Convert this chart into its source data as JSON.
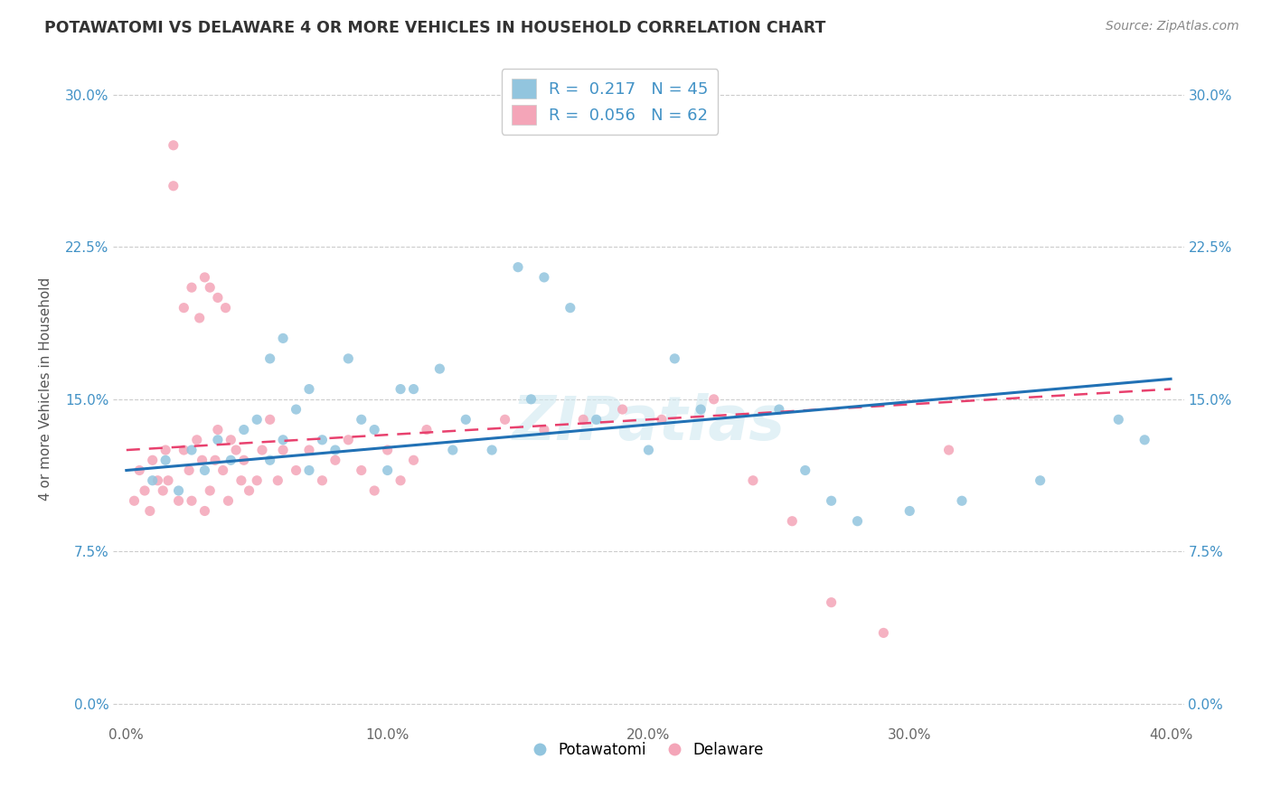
{
  "title": "POTAWATOMI VS DELAWARE 4 OR MORE VEHICLES IN HOUSEHOLD CORRELATION CHART",
  "source": "Source: ZipAtlas.com",
  "ylabel": "4 or more Vehicles in Household",
  "xlim": [
    0,
    40
  ],
  "ylim": [
    0,
    32
  ],
  "xticks": [
    0,
    10,
    20,
    30,
    40
  ],
  "xticklabels": [
    "0.0%",
    "10.0%",
    "20.0%",
    "30.0%",
    "40.0%"
  ],
  "yticks": [
    0,
    7.5,
    15.0,
    22.5,
    30.0
  ],
  "yticklabels": [
    "0.0%",
    "7.5%",
    "15.0%",
    "22.5%",
    "30.0%"
  ],
  "potawatomi_R": 0.217,
  "potawatomi_N": 45,
  "delaware_R": 0.056,
  "delaware_N": 62,
  "blue_color": "#92c5de",
  "pink_color": "#f4a5b8",
  "blue_line_color": "#2171b5",
  "pink_line_color": "#e8416e",
  "watermark": "ZIPatlas",
  "potawatomi_x": [
    1.0,
    1.5,
    2.0,
    2.5,
    3.0,
    3.5,
    4.0,
    4.5,
    5.0,
    5.5,
    6.0,
    6.5,
    7.0,
    7.5,
    8.0,
    9.0,
    9.5,
    10.0,
    11.0,
    12.0,
    13.0,
    14.0,
    15.0,
    16.0,
    17.0,
    18.0,
    20.0,
    21.0,
    22.0,
    25.0,
    26.0,
    27.0,
    28.0,
    30.0,
    32.0,
    35.0,
    38.0,
    39.0,
    5.5,
    6.0,
    7.0,
    8.5,
    10.5,
    12.5,
    15.5
  ],
  "potawatomi_y": [
    11.0,
    12.0,
    10.5,
    12.5,
    11.5,
    13.0,
    12.0,
    13.5,
    14.0,
    12.0,
    13.0,
    14.5,
    11.5,
    13.0,
    12.5,
    14.0,
    13.5,
    11.5,
    15.5,
    16.5,
    14.0,
    12.5,
    21.5,
    21.0,
    19.5,
    14.0,
    12.5,
    17.0,
    14.5,
    14.5,
    11.5,
    10.0,
    9.0,
    9.5,
    10.0,
    11.0,
    14.0,
    13.0,
    17.0,
    18.0,
    15.5,
    17.0,
    15.5,
    12.5,
    15.0
  ],
  "delaware_x": [
    0.3,
    0.5,
    0.7,
    0.9,
    1.0,
    1.2,
    1.4,
    1.5,
    1.6,
    1.8,
    2.0,
    2.2,
    2.4,
    2.5,
    2.7,
    2.9,
    3.0,
    3.2,
    3.4,
    3.5,
    3.7,
    3.9,
    4.0,
    4.2,
    4.4,
    4.5,
    4.7,
    5.0,
    5.2,
    5.5,
    5.8,
    6.0,
    6.5,
    7.0,
    7.5,
    8.0,
    8.5,
    9.0,
    9.5,
    10.0,
    10.5,
    11.0,
    11.5,
    14.5,
    16.0,
    17.5,
    19.0,
    20.5,
    22.5,
    24.0,
    25.5,
    27.0,
    29.0,
    31.5,
    1.8,
    2.2,
    2.5,
    2.8,
    3.0,
    3.2,
    3.5,
    3.8
  ],
  "delaware_y": [
    10.0,
    11.5,
    10.5,
    9.5,
    12.0,
    11.0,
    10.5,
    12.5,
    11.0,
    27.5,
    10.0,
    12.5,
    11.5,
    10.0,
    13.0,
    12.0,
    9.5,
    10.5,
    12.0,
    13.5,
    11.5,
    10.0,
    13.0,
    12.5,
    11.0,
    12.0,
    10.5,
    11.0,
    12.5,
    14.0,
    11.0,
    12.5,
    11.5,
    12.5,
    11.0,
    12.0,
    13.0,
    11.5,
    10.5,
    12.5,
    11.0,
    12.0,
    13.5,
    14.0,
    13.5,
    14.0,
    14.5,
    14.0,
    15.0,
    11.0,
    9.0,
    5.0,
    3.5,
    12.5,
    25.5,
    19.5,
    20.5,
    19.0,
    21.0,
    20.5,
    20.0,
    19.5
  ]
}
